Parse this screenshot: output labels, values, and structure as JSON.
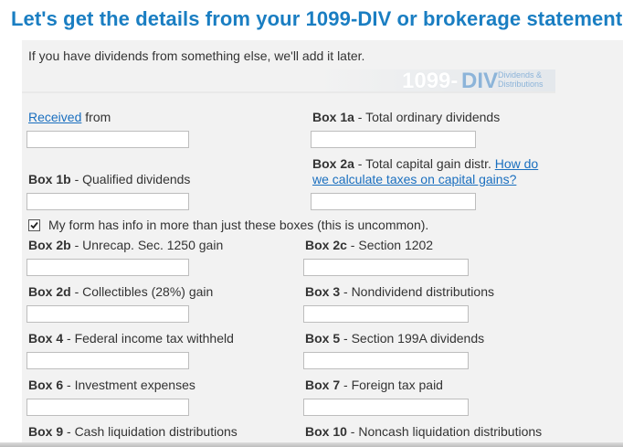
{
  "heading": "Let's get the details from your 1099-DIV or brokerage statement",
  "subtitle": "If you have dividends from something else, we'll add it later.",
  "form_badge": {
    "number": "1099-",
    "code": "DIV",
    "desc_line1": "Dividends &",
    "desc_line2": "Distributions"
  },
  "received": {
    "link": "Received",
    "text": " from",
    "value": ""
  },
  "box1a": {
    "box": "Box 1a",
    "desc": " - Total ordinary dividends",
    "value": ""
  },
  "box1b": {
    "box": "Box 1b",
    "desc": " - Qualified dividends",
    "value": ""
  },
  "box2a": {
    "box": "Box 2a",
    "desc": " - Total capital gain distr. ",
    "link_line1": "How do",
    "link_line2": "we calculate taxes on capital gains?",
    "value": ""
  },
  "more_boxes": {
    "checked": true,
    "label": "My form has info in more than just these boxes (this is uncommon)."
  },
  "box2b": {
    "box": "Box 2b",
    "desc": " - Unrecap. Sec. 1250 gain",
    "value": ""
  },
  "box2c": {
    "box": "Box 2c",
    "desc": " - Section 1202",
    "value": ""
  },
  "box2d": {
    "box": "Box 2d",
    "desc": " - Collectibles (28%) gain",
    "value": ""
  },
  "box3": {
    "box": "Box 3",
    "desc": " - Nondividend distributions",
    "value": ""
  },
  "box4": {
    "box": "Box 4",
    "desc": " - Federal income tax withheld",
    "value": ""
  },
  "box5": {
    "box": "Box 5",
    "desc": " - Section 199A dividends",
    "value": ""
  },
  "box6": {
    "box": "Box 6",
    "desc": " - Investment expenses",
    "value": ""
  },
  "box7": {
    "box": "Box 7",
    "desc": " - Foreign tax paid",
    "value": ""
  },
  "box9": {
    "box": "Box 9",
    "desc": " - Cash liquidation distributions"
  },
  "box10": {
    "box": "Box 10",
    "desc": " - Noncash liquidation distributions"
  }
}
